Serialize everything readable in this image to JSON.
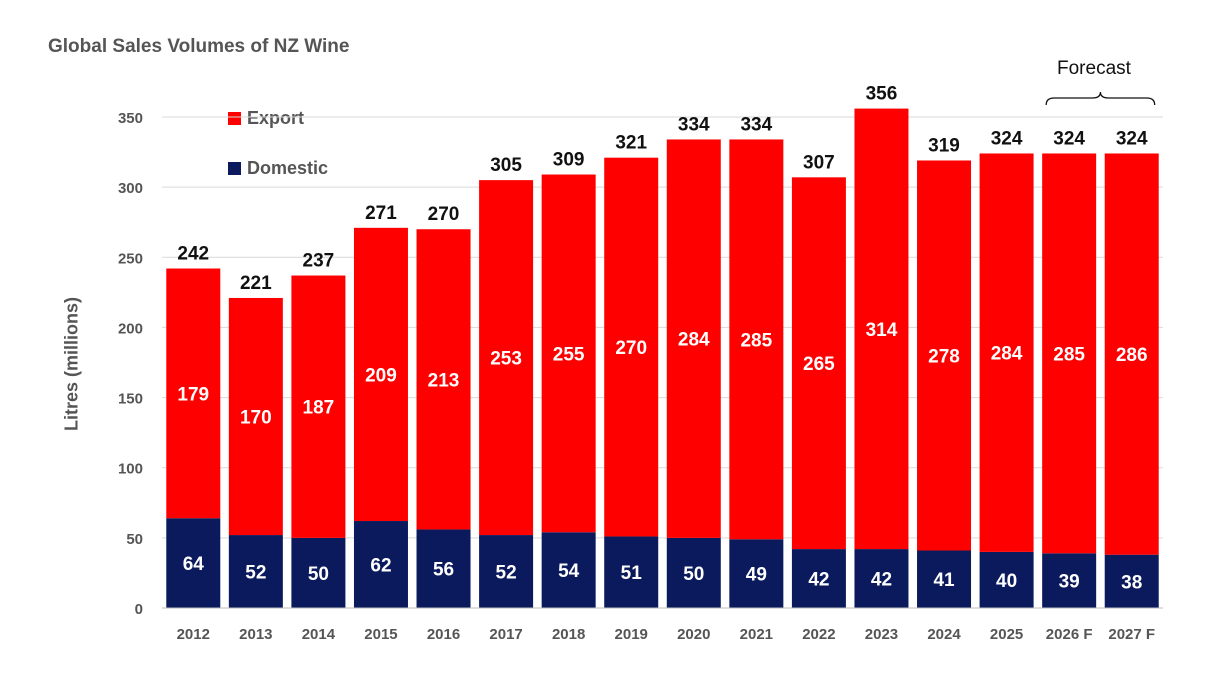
{
  "chart_data": {
    "type": "bar",
    "stacked": true,
    "title": "Global Sales Volumes of NZ Wine",
    "ylabel": "Litres (millions)",
    "xlabel": "",
    "ylim": [
      0,
      350
    ],
    "yticks": [
      0,
      50,
      100,
      150,
      200,
      250,
      300,
      350
    ],
    "grid": true,
    "legend_position": "top-left",
    "categories": [
      "2012",
      "2013",
      "2014",
      "2015",
      "2016",
      "2017",
      "2018",
      "2019",
      "2020",
      "2021",
      "2022",
      "2023",
      "2024",
      "2025",
      "2026 F",
      "2027 F"
    ],
    "series": [
      {
        "name": "Domestic",
        "color": "#0a1a5c",
        "values": [
          64,
          52,
          50,
          62,
          56,
          52,
          54,
          51,
          50,
          49,
          42,
          42,
          41,
          40,
          39,
          38
        ]
      },
      {
        "name": "Export",
        "color": "#ff0000",
        "values": [
          179,
          170,
          187,
          209,
          213,
          253,
          255,
          270,
          284,
          285,
          265,
          314,
          278,
          284,
          285,
          286
        ]
      }
    ],
    "totals": [
      242,
      221,
      237,
      271,
      270,
      305,
      309,
      321,
      334,
      334,
      307,
      356,
      319,
      324,
      324,
      324
    ],
    "annotation": {
      "text": "Forecast",
      "categories": [
        "2026 F",
        "2027 F"
      ]
    }
  }
}
